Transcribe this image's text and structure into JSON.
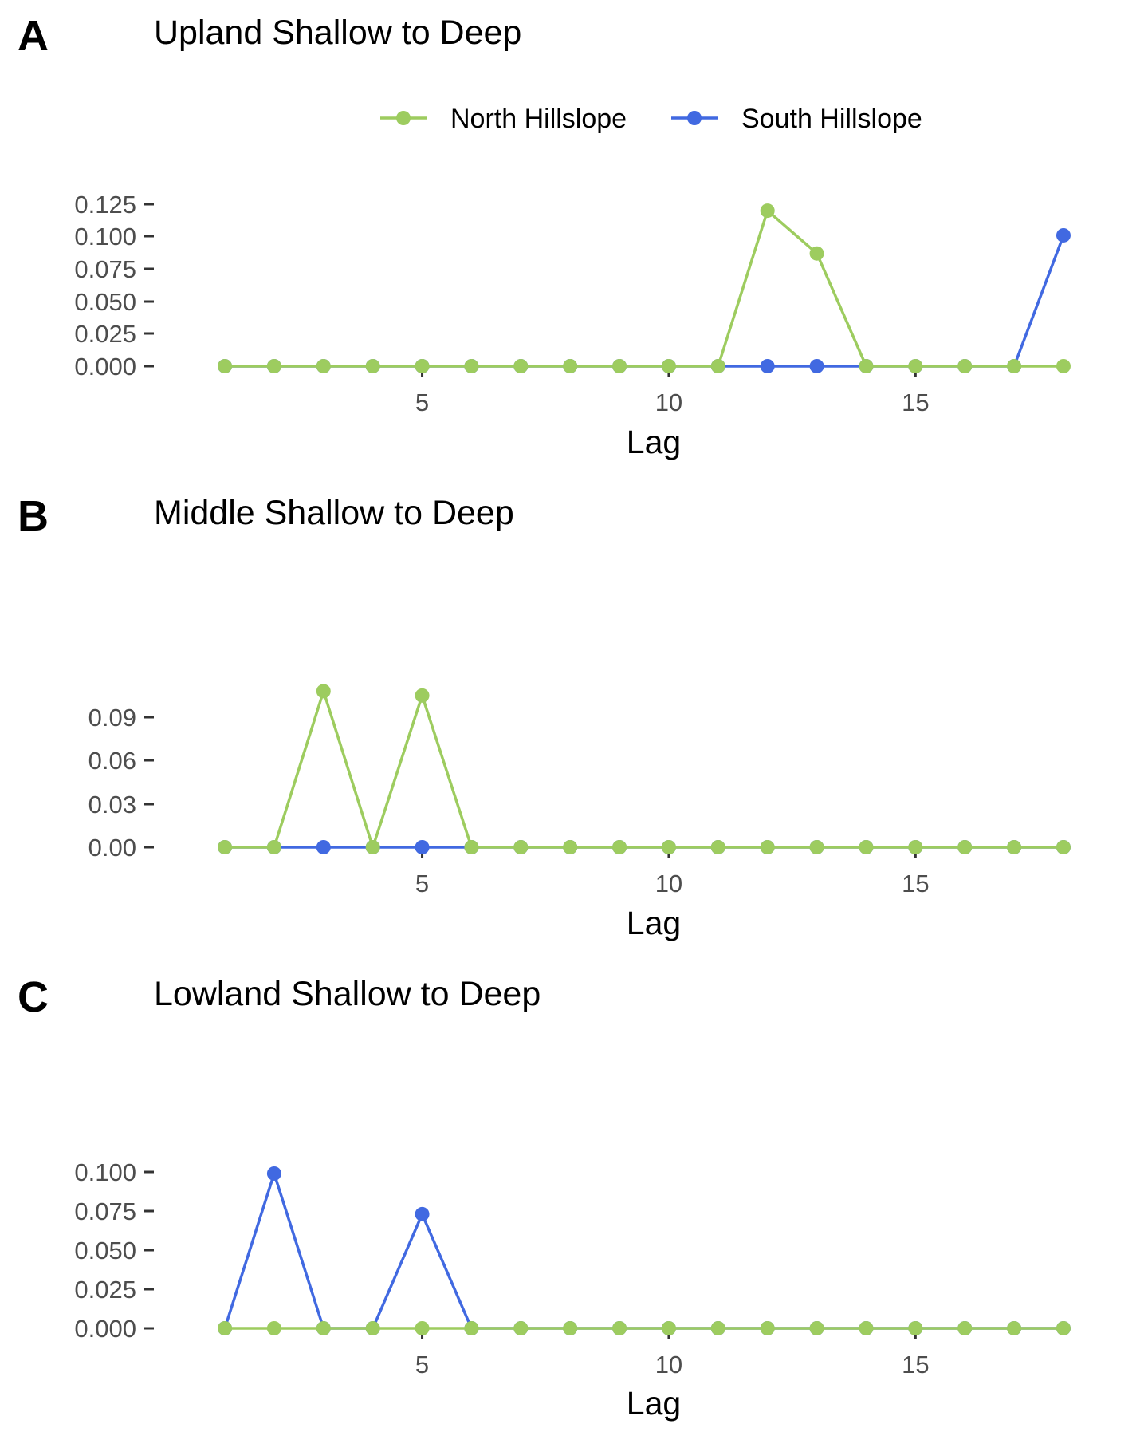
{
  "colors": {
    "north": "#9DCC5F",
    "south": "#4169E1",
    "tick": "#333333",
    "tick_text": "#4d4d4d"
  },
  "legend": {
    "items": [
      {
        "label": "North Hillslope",
        "color": "#9DCC5F"
      },
      {
        "label": "South Hillslope",
        "color": "#4169E1"
      }
    ]
  },
  "chart_data": [
    {
      "type": "line",
      "panel": "A",
      "title": "Upland Shallow to Deep",
      "xlabel": "Lag",
      "ylabel": "",
      "xlim": [
        0.45,
        18.55
      ],
      "ylim": [
        0,
        0.125
      ],
      "x_ticks": [
        5,
        10,
        15
      ],
      "y_ticks": [
        "0.000",
        "0.025",
        "0.050",
        "0.075",
        "0.100",
        "0.125"
      ],
      "x": [
        1,
        2,
        3,
        4,
        5,
        6,
        7,
        8,
        9,
        10,
        11,
        12,
        13,
        14,
        15,
        16,
        17,
        18
      ],
      "series": [
        {
          "name": "South Hillslope",
          "values": [
            0,
            0,
            0,
            0,
            0,
            0,
            0,
            0,
            0,
            0,
            0,
            0,
            0,
            0,
            0,
            0,
            0,
            0.101
          ]
        },
        {
          "name": "North Hillslope",
          "values": [
            0,
            0,
            0,
            0,
            0,
            0,
            0,
            0,
            0,
            0,
            0,
            0.12,
            0.087,
            0,
            0,
            0,
            0,
            0
          ]
        }
      ]
    },
    {
      "type": "line",
      "panel": "B",
      "title": "Middle Shallow to Deep",
      "xlabel": "Lag",
      "ylabel": "",
      "xlim": [
        0.45,
        18.55
      ],
      "ylim": [
        0,
        0.11
      ],
      "x_ticks": [
        5,
        10,
        15
      ],
      "y_ticks": [
        "0.00",
        "0.03",
        "0.06",
        "0.09"
      ],
      "x": [
        1,
        2,
        3,
        4,
        5,
        6,
        7,
        8,
        9,
        10,
        11,
        12,
        13,
        14,
        15,
        16,
        17,
        18
      ],
      "series": [
        {
          "name": "South Hillslope",
          "values": [
            0,
            0,
            0,
            0,
            0,
            0,
            0,
            0,
            0,
            0,
            0,
            0,
            0,
            0,
            0,
            0,
            0,
            0
          ]
        },
        {
          "name": "North Hillslope",
          "values": [
            0,
            0,
            0.108,
            0,
            0.105,
            0,
            0,
            0,
            0,
            0,
            0,
            0,
            0,
            0,
            0,
            0,
            0,
            0
          ]
        }
      ]
    },
    {
      "type": "line",
      "panel": "C",
      "title": "Lowland Shallow to Deep",
      "xlabel": "Lag",
      "ylabel": "",
      "xlim": [
        0.45,
        18.55
      ],
      "ylim": [
        0,
        0.1
      ],
      "x_ticks": [
        5,
        10,
        15
      ],
      "y_ticks": [
        "0.000",
        "0.025",
        "0.050",
        "0.075",
        "0.100"
      ],
      "x": [
        1,
        2,
        3,
        4,
        5,
        6,
        7,
        8,
        9,
        10,
        11,
        12,
        13,
        14,
        15,
        16,
        17,
        18
      ],
      "series": [
        {
          "name": "South Hillslope",
          "values": [
            0,
            0.099,
            0,
            0,
            0.073,
            0,
            0,
            0,
            0,
            0,
            0,
            0,
            0,
            0,
            0,
            0,
            0,
            0
          ]
        },
        {
          "name": "North Hillslope",
          "values": [
            0,
            0,
            0,
            0,
            0,
            0,
            0,
            0,
            0,
            0,
            0,
            0,
            0,
            0,
            0,
            0,
            0,
            0
          ]
        }
      ]
    }
  ]
}
